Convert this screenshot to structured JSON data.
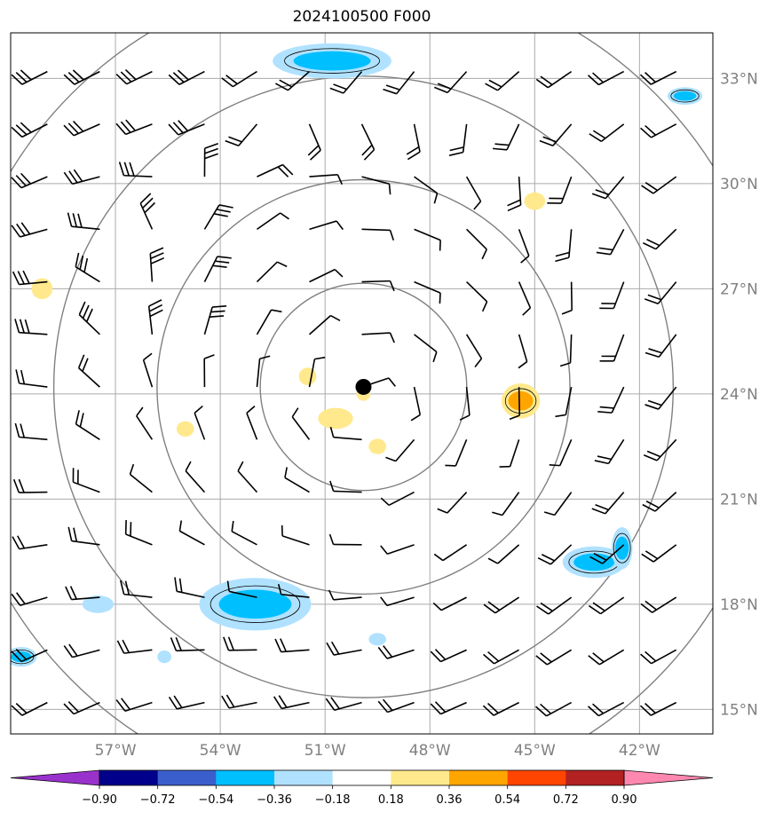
{
  "title": "2024100500 F000",
  "map": {
    "lon_range": [
      -60,
      -40
    ],
    "lat_range": [
      14,
      34
    ],
    "center": {
      "lon": -49.9,
      "lat": 24.2
    },
    "lon_ticks": [
      {
        "value": -57,
        "label": "57°W"
      },
      {
        "value": -54,
        "label": "54°W"
      },
      {
        "value": -51,
        "label": "51°W"
      },
      {
        "value": -48,
        "label": "48°W"
      },
      {
        "value": -45,
        "label": "45°W"
      },
      {
        "value": -42,
        "label": "42°W"
      }
    ],
    "lat_ticks": [
      {
        "value": 33,
        "label": "33°N"
      },
      {
        "value": 30,
        "label": "30°N"
      },
      {
        "value": 27,
        "label": "27°N"
      },
      {
        "value": 24,
        "label": "24°N"
      },
      {
        "value": 21,
        "label": "21°N"
      },
      {
        "value": 18,
        "label": "18°N"
      },
      {
        "value": 15,
        "label": "15°N"
      }
    ],
    "range_rings_deg": [
      3,
      6,
      9,
      12
    ],
    "colors": {
      "grid": "#aaaaaa",
      "ring": "#808080",
      "label": "#808080",
      "barb": "#000000"
    }
  },
  "colorbar": {
    "ticks": [
      "−0.90",
      "−0.72",
      "−0.54",
      "−0.36",
      "−0.18",
      "0.18",
      "0.36",
      "0.54",
      "0.72",
      "0.90"
    ],
    "colors": [
      "#9932cc",
      "#00008b",
      "#3a5fcd",
      "#00bfff",
      "#b0e2ff",
      "#ffffff",
      "#ffe98c",
      "#ffa500",
      "#ff4500",
      "#b22222",
      "#ff88b0"
    ]
  },
  "anomalies": [
    {
      "lon": -50.8,
      "lat": 33.5,
      "rx": 1.7,
      "ry": 0.5,
      "level": "neg",
      "inner": true
    },
    {
      "lon": -40.7,
      "lat": 32.5,
      "rx": 0.5,
      "ry": 0.25,
      "level": "neg",
      "inner": true
    },
    {
      "lon": -45,
      "lat": 29.5,
      "rx": 0.3,
      "ry": 0.25,
      "level": "pos",
      "inner": false
    },
    {
      "lon": -59.1,
      "lat": 27,
      "rx": 0.3,
      "ry": 0.3,
      "level": "pos",
      "inner": false
    },
    {
      "lon": -51.5,
      "lat": 24.5,
      "rx": 0.25,
      "ry": 0.25,
      "level": "pos",
      "inner": false
    },
    {
      "lon": -50.7,
      "lat": 23.3,
      "rx": 0.5,
      "ry": 0.3,
      "level": "pos",
      "inner": false
    },
    {
      "lon": -49.5,
      "lat": 22.5,
      "rx": 0.25,
      "ry": 0.22,
      "level": "pos",
      "inner": false
    },
    {
      "lon": -49.9,
      "lat": 24,
      "rx": 0.2,
      "ry": 0.2,
      "level": "pos",
      "inner": false
    },
    {
      "lon": -55,
      "lat": 23,
      "rx": 0.25,
      "ry": 0.22,
      "level": "pos",
      "inner": false
    },
    {
      "lon": -45.4,
      "lat": 23.8,
      "rx": 0.55,
      "ry": 0.5,
      "level": "strongpos",
      "inner": true
    },
    {
      "lon": -43.3,
      "lat": 19.2,
      "rx": 0.9,
      "ry": 0.45,
      "level": "neg",
      "inner": true
    },
    {
      "lon": -42.5,
      "lat": 19.6,
      "rx": 0.3,
      "ry": 0.6,
      "level": "neg",
      "inner": true
    },
    {
      "lon": -53,
      "lat": 18,
      "rx": 1.6,
      "ry": 0.75,
      "level": "neg",
      "inner": true
    },
    {
      "lon": -57.5,
      "lat": 18,
      "rx": 0.45,
      "ry": 0.25,
      "level": "neg",
      "inner": false
    },
    {
      "lon": -59.7,
      "lat": 16.5,
      "rx": 0.45,
      "ry": 0.28,
      "level": "neg",
      "inner": true
    },
    {
      "lon": -55.6,
      "lat": 16.5,
      "rx": 0.2,
      "ry": 0.18,
      "level": "neg",
      "inner": false
    },
    {
      "lon": -49.5,
      "lat": 17,
      "rx": 0.25,
      "ry": 0.18,
      "level": "neg",
      "inner": false
    }
  ],
  "center_marker": {
    "lon": -49.9,
    "lat": 24.2
  }
}
